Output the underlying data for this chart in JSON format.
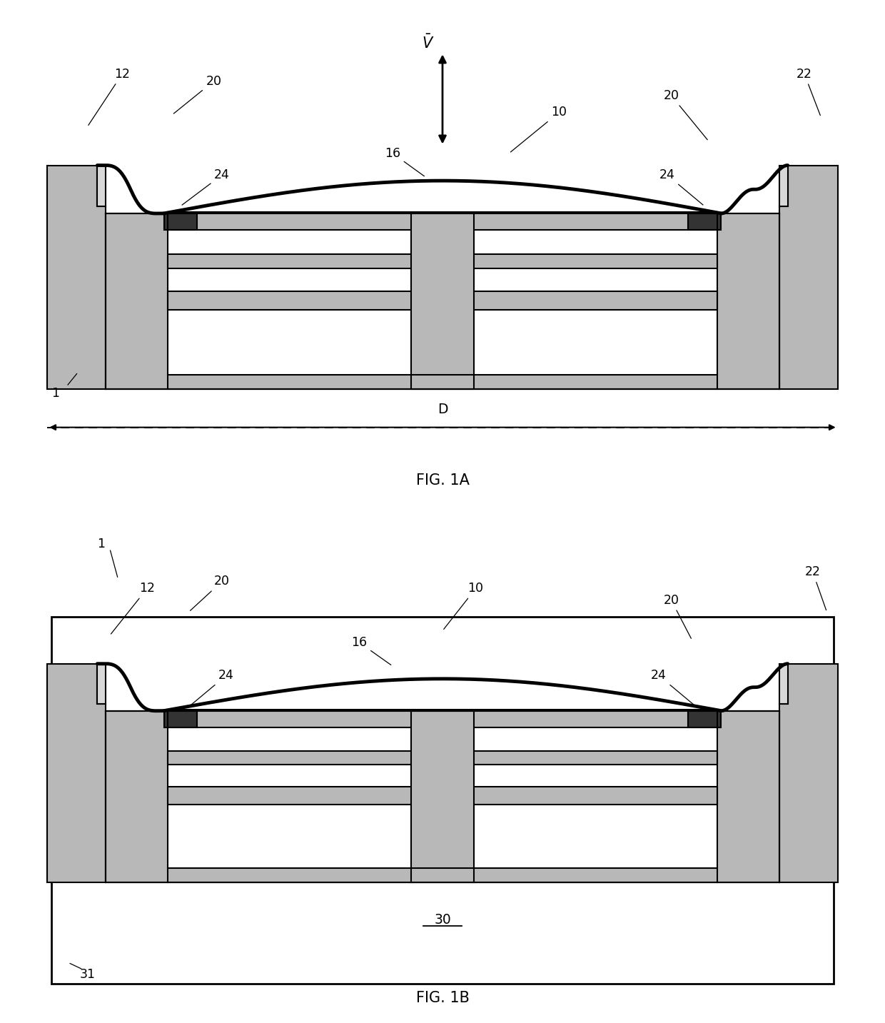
{
  "fig_width": 12.4,
  "fig_height": 14.33,
  "bg_color": "#ffffff",
  "BLACK": "#000000",
  "DGRAY": "#555555",
  "LGRAY": "#b8b8b8",
  "LLGRAY": "#d8d8d8",
  "DFILL": "#333333",
  "WHITE": "#ffffff",
  "fig1a_label": "FIG. 1A",
  "fig1b_label": "FIG. 1B"
}
